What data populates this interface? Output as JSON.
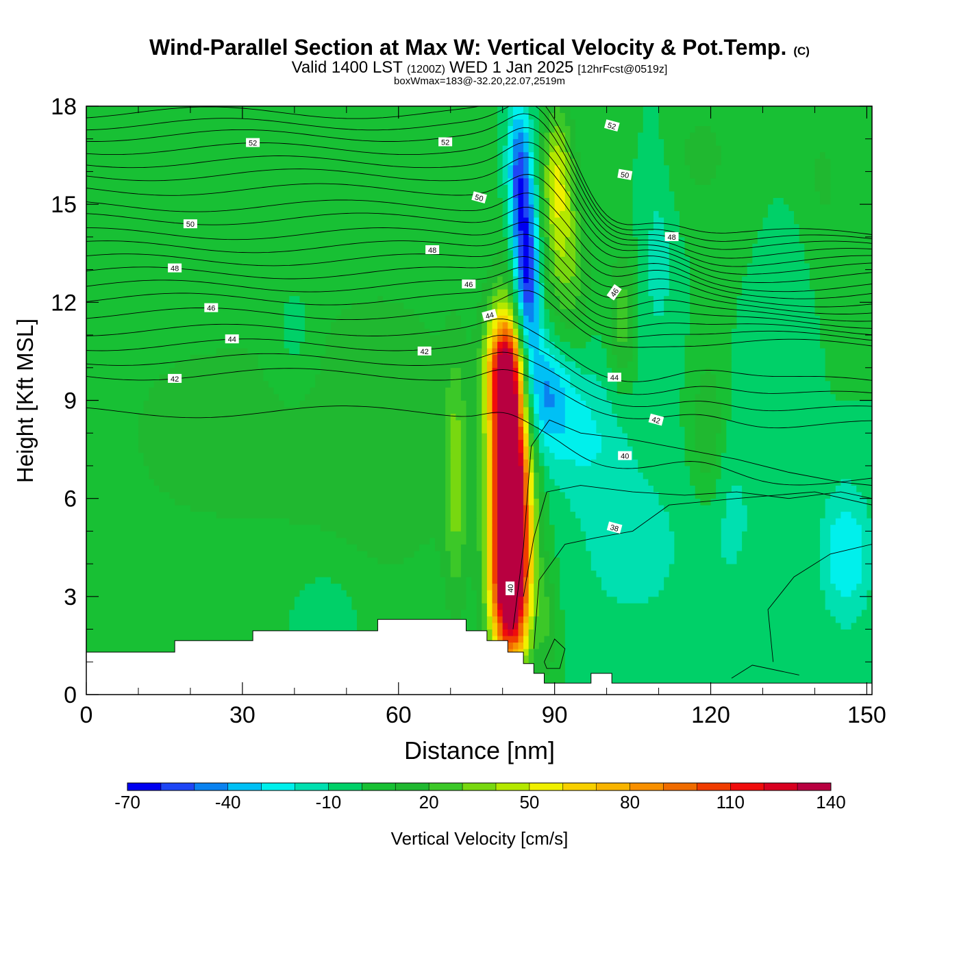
{
  "chart_data": {
    "type": "heatmap",
    "title": "Wind-Parallel Section at Max W: Vertical Velocity & Pot.Temp.",
    "title_mark": "(C)",
    "subtitle_valid": "Valid 1400 LST",
    "subtitle_utc": "(1200Z)",
    "subtitle_date": "WED 1 Jan 2025",
    "subtitle_fcst": "[12hrFcst@0519z]",
    "subtitle_box": "boxWmax=183@-32.20,22.07,2519m",
    "xlabel": "Distance [nm]",
    "ylabel": "Height [Kft MSL]",
    "xlim": [
      0,
      151
    ],
    "ylim": [
      0,
      18
    ],
    "xticks": [
      "0",
      "30",
      "60",
      "90",
      "120",
      "150"
    ],
    "yticks": [
      "0",
      "3",
      "6",
      "9",
      "12",
      "15",
      "18"
    ],
    "colorbar": {
      "label": "Vertical Velocity [cm/s]",
      "ticks": [
        "-70",
        "-40",
        "-10",
        "20",
        "50",
        "80",
        "110",
        "140"
      ],
      "levels": [
        -70,
        -60,
        -50,
        -40,
        -30,
        -20,
        -10,
        0,
        10,
        20,
        30,
        40,
        50,
        60,
        70,
        80,
        90,
        100,
        110,
        120,
        130,
        140
      ],
      "colors": [
        "#0000f0",
        "#1e46f5",
        "#0a82f0",
        "#00c0f5",
        "#00f0ec",
        "#00e0b0",
        "#00d068",
        "#18c034",
        "#20b830",
        "#3cc828",
        "#78d810",
        "#b4e800",
        "#f0f000",
        "#f8d000",
        "#f8b400",
        "#f89000",
        "#f06c00",
        "#f03c00",
        "#f00c0c",
        "#d80020",
        "#b80040"
      ]
    },
    "background_w": 0,
    "w_features": [
      {
        "name": "main-updraft",
        "x": 81.5,
        "y": 6.2,
        "wx": 2.7,
        "wy": 3.2,
        "w": 183
      },
      {
        "name": "updraft-base",
        "x": 81.5,
        "y": 3.0,
        "wx": 2.5,
        "wy": 1.3,
        "w": 65
      },
      {
        "name": "updraft-top",
        "x": 80.5,
        "y": 9.9,
        "wx": 2.5,
        "wy": 1.2,
        "w": 80
      },
      {
        "name": "downdraft-core",
        "x": 84.5,
        "y": 12.6,
        "wx": 1.9,
        "wy": 2.3,
        "w": -74
      },
      {
        "name": "downdraft-upper",
        "x": 83.0,
        "y": 16.2,
        "wx": 1.5,
        "wy": 1.5,
        "w": -42
      },
      {
        "name": "downdraft-mid",
        "x": 87.5,
        "y": 9.2,
        "wx": 3.8,
        "wy": 1.3,
        "w": -40
      },
      {
        "name": "upper-updraft",
        "x": 90.5,
        "y": 15.8,
        "wx": 2.2,
        "wy": 1.6,
        "w": 48
      },
      {
        "name": "updraft-ridge",
        "x": 92.5,
        "y": 13.0,
        "wx": 3.0,
        "wy": 1.6,
        "w": 28
      },
      {
        "name": "lee-updraft",
        "x": 103.0,
        "y": 11.5,
        "wx": 1.8,
        "wy": 1.5,
        "w": 25
      },
      {
        "name": "side-updraft",
        "x": 71.0,
        "y": 6.5,
        "wx": 1.5,
        "wy": 2.6,
        "w": 28
      },
      {
        "name": "shallow-updraft",
        "x": 119.5,
        "y": 8.0,
        "wx": 2.2,
        "wy": 1.6,
        "w": 22
      },
      {
        "name": "low-updraft",
        "x": 88.5,
        "y": 2.3,
        "wx": 1.4,
        "wy": 1.4,
        "w": 18
      },
      {
        "name": "weak-down-1",
        "x": 96.0,
        "y": 8.0,
        "wx": 6.0,
        "wy": 1.5,
        "w": -20
      },
      {
        "name": "weak-down-2",
        "x": 105.0,
        "y": 4.5,
        "wx": 8.0,
        "wy": 1.8,
        "w": -16
      },
      {
        "name": "weak-down-3",
        "x": 146.0,
        "y": 4.3,
        "wx": 3.5,
        "wy": 1.5,
        "w": -30
      },
      {
        "name": "weak-down-4",
        "x": 46.0,
        "y": 2.4,
        "wx": 5.0,
        "wy": 1.2,
        "w": -12
      },
      {
        "name": "weak-down-5",
        "x": 40.0,
        "y": 11.0,
        "wx": 3.0,
        "wy": 1.3,
        "w": -12
      },
      {
        "name": "weak-down-6",
        "x": 135.0,
        "y": 12.5,
        "wx": 3.5,
        "wy": 2.5,
        "w": -13
      },
      {
        "name": "weak-down-7",
        "x": 110.0,
        "y": 13.5,
        "wx": 2.5,
        "wy": 2.5,
        "w": -14
      },
      {
        "name": "weak-down-8",
        "x": 124.0,
        "y": 5.5,
        "wx": 4.0,
        "wy": 2.0,
        "w": -12
      },
      {
        "name": "weak-up-1",
        "x": 25.0,
        "y": 8.0,
        "wx": 25.0,
        "wy": 4.0,
        "w": 12
      },
      {
        "name": "weak-up-2",
        "x": 60.0,
        "y": 8.0,
        "wx": 12.0,
        "wy": 4.0,
        "w": 12
      },
      {
        "name": "weak-up-3",
        "x": 140.0,
        "y": 15.5,
        "wx": 6.0,
        "wy": 2.5,
        "w": 12
      },
      {
        "name": "weak-up-4",
        "x": 118.0,
        "y": 16.5,
        "wx": 6.0,
        "wy": 1.5,
        "w": 12
      }
    ],
    "terrain": [
      [
        0,
        1.3
      ],
      [
        17,
        1.3
      ],
      [
        17,
        1.65
      ],
      [
        32,
        1.65
      ],
      [
        32,
        1.95
      ],
      [
        56,
        1.95
      ],
      [
        56,
        2.3
      ],
      [
        73,
        2.3
      ],
      [
        73,
        1.95
      ],
      [
        77,
        1.95
      ],
      [
        77,
        1.65
      ],
      [
        81,
        1.65
      ],
      [
        81,
        1.3
      ],
      [
        84,
        1.3
      ],
      [
        84,
        0.95
      ],
      [
        86,
        0.95
      ],
      [
        86,
        0.65
      ],
      [
        88,
        0.65
      ],
      [
        88,
        0.35
      ],
      [
        97,
        0.35
      ],
      [
        97,
        0.65
      ],
      [
        101,
        0.65
      ],
      [
        101,
        0.35
      ],
      [
        151,
        0.35
      ]
    ],
    "theta_contours": [
      {
        "y": 8.65,
        "label": null,
        "label_x": null
      },
      {
        "y": 9.8,
        "label": "42",
        "label_x": 17
      },
      {
        "y": 10.25,
        "label": null,
        "label_x": null
      },
      {
        "y": 10.7,
        "label": "44",
        "label_x": 28
      },
      {
        "y": 11.15,
        "label": null,
        "label_x": null
      },
      {
        "y": 11.65,
        "label": "46",
        "label_x": 24
      },
      {
        "y": 12.1,
        "label": null,
        "label_x": null
      },
      {
        "y": 12.5,
        "label": null,
        "label_x": null
      },
      {
        "y": 12.9,
        "label": "48",
        "label_x": 17
      },
      {
        "y": 13.3,
        "label": null,
        "label_x": null
      },
      {
        "y": 13.7,
        "label": null,
        "label_x": null
      },
      {
        "y": 14.1,
        "label": null,
        "label_x": null
      },
      {
        "y": 14.55,
        "label": "50",
        "label_x": 20
      },
      {
        "y": 14.95,
        "label": null,
        "label_x": null
      },
      {
        "y": 15.45,
        "label": null,
        "label_x": null
      },
      {
        "y": 15.9,
        "label": null,
        "label_x": null
      },
      {
        "y": 16.3,
        "label": null,
        "label_x": null
      },
      {
        "y": 16.7,
        "label": "52",
        "label_x": 32
      },
      {
        "y": 17.1,
        "label": null,
        "label_x": null
      },
      {
        "y": 17.45,
        "label": null,
        "label_x": null
      },
      {
        "y": 17.8,
        "label": null,
        "label_x": null
      }
    ],
    "extra_contour_labels": [
      {
        "x": 81.5,
        "y": 3.25,
        "label": "40",
        "angle": -90
      },
      {
        "x": 101.5,
        "y": 5.1,
        "label": "38",
        "angle": 15
      },
      {
        "x": 103.5,
        "y": 7.3,
        "label": "40",
        "angle": 0
      },
      {
        "x": 109.5,
        "y": 8.4,
        "label": "42",
        "angle": 15
      },
      {
        "x": 101.5,
        "y": 9.7,
        "label": "44",
        "angle": 0
      },
      {
        "x": 101.5,
        "y": 12.3,
        "label": "46",
        "angle": -55
      },
      {
        "x": 112.5,
        "y": 14.0,
        "label": "48",
        "angle": 0
      },
      {
        "x": 103.5,
        "y": 15.9,
        "label": "50",
        "angle": 10
      },
      {
        "x": 101.0,
        "y": 17.4,
        "label": "52",
        "angle": 15
      },
      {
        "x": 69.0,
        "y": 16.9,
        "label": "52",
        "angle": 0
      },
      {
        "x": 75.5,
        "y": 15.2,
        "label": "50",
        "angle": 15
      },
      {
        "x": 66.5,
        "y": 13.6,
        "label": "48",
        "angle": 0
      },
      {
        "x": 73.5,
        "y": 12.55,
        "label": "46",
        "angle": 0
      },
      {
        "x": 77.5,
        "y": 11.6,
        "label": "44",
        "angle": -15
      },
      {
        "x": 65.0,
        "y": 10.5,
        "label": "42",
        "angle": 0
      }
    ]
  }
}
